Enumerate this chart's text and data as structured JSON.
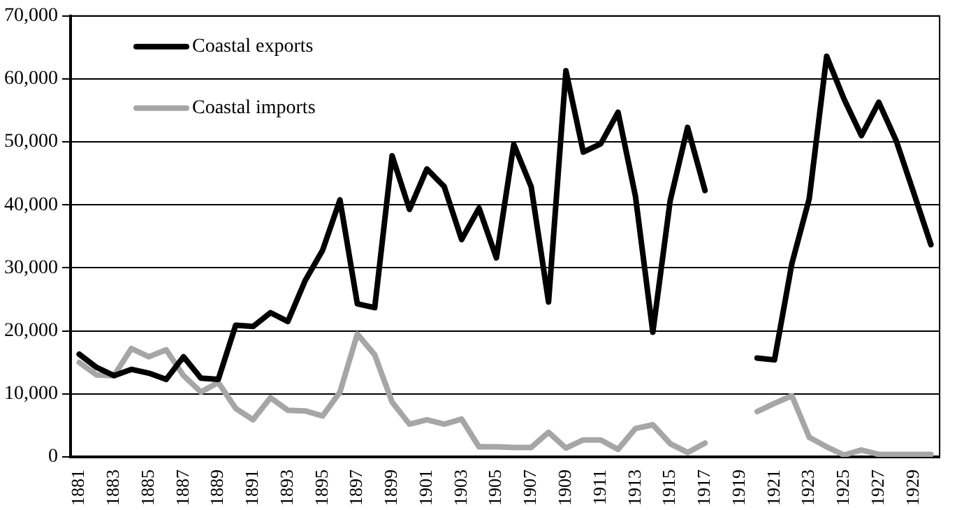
{
  "chart_data": {
    "type": "line",
    "categories": [
      "1881",
      null,
      "1883",
      null,
      "1885",
      null,
      "1887",
      null,
      "1889",
      null,
      "1891",
      null,
      "1893",
      null,
      "1895",
      null,
      "1897",
      null,
      "1899",
      null,
      "1901",
      null,
      "1903",
      null,
      "1905",
      null,
      "1907",
      null,
      "1909",
      null,
      "1911",
      null,
      "1913",
      null,
      "1915",
      null,
      "1917",
      null,
      "1919",
      null,
      "1921",
      null,
      "1923",
      null,
      "1925",
      null,
      "1927",
      null,
      "1929",
      null
    ],
    "series": [
      {
        "name": "Coastal exports",
        "color": "#000000",
        "values": [
          16300,
          14200,
          12900,
          13900,
          13300,
          12300,
          15900,
          12500,
          12300,
          20900,
          20700,
          22900,
          21500,
          28000,
          32800,
          40800,
          24300,
          23700,
          47800,
          39300,
          45700,
          42900,
          34500,
          39500,
          31600,
          49600,
          42900,
          24600,
          61300,
          48400,
          49700,
          54700,
          41400,
          19800,
          40700,
          52300,
          42300,
          null,
          null,
          15700,
          15400,
          30700,
          41000,
          63600,
          56800,
          51000,
          56300,
          50200,
          42000,
          33700
        ]
      },
      {
        "name": "Coastal imports",
        "color": "#a6a6a6",
        "values": [
          15000,
          13000,
          12900,
          17200,
          15900,
          17000,
          12900,
          10300,
          11800,
          7700,
          5900,
          9400,
          7400,
          7300,
          6500,
          10300,
          19500,
          16200,
          8700,
          5200,
          5900,
          5200,
          6000,
          1600,
          1600,
          1500,
          1500,
          3900,
          1400,
          2700,
          2700,
          1200,
          4500,
          5100,
          2100,
          700,
          2200,
          null,
          null,
          7200,
          8500,
          9700,
          3100,
          1600,
          300,
          1100,
          400,
          400,
          400,
          400
        ]
      }
    ],
    "ylim": [
      0,
      70000
    ],
    "yticks": [
      0,
      {
        "value": 10000,
        "label": "10,000"
      },
      {
        "value": 20000,
        "label": "20,000"
      },
      {
        "value": 30000,
        "label": "30,000"
      },
      {
        "value": 40000,
        "label": "40,000"
      },
      {
        "value": 50000,
        "label": "50,000"
      },
      {
        "value": 60000,
        "label": "60,000"
      },
      {
        "value": 70000,
        "label": "70,000"
      }
    ],
    "grid": "y",
    "legend": "top left",
    "marker": "none",
    "line_style": "solid"
  }
}
